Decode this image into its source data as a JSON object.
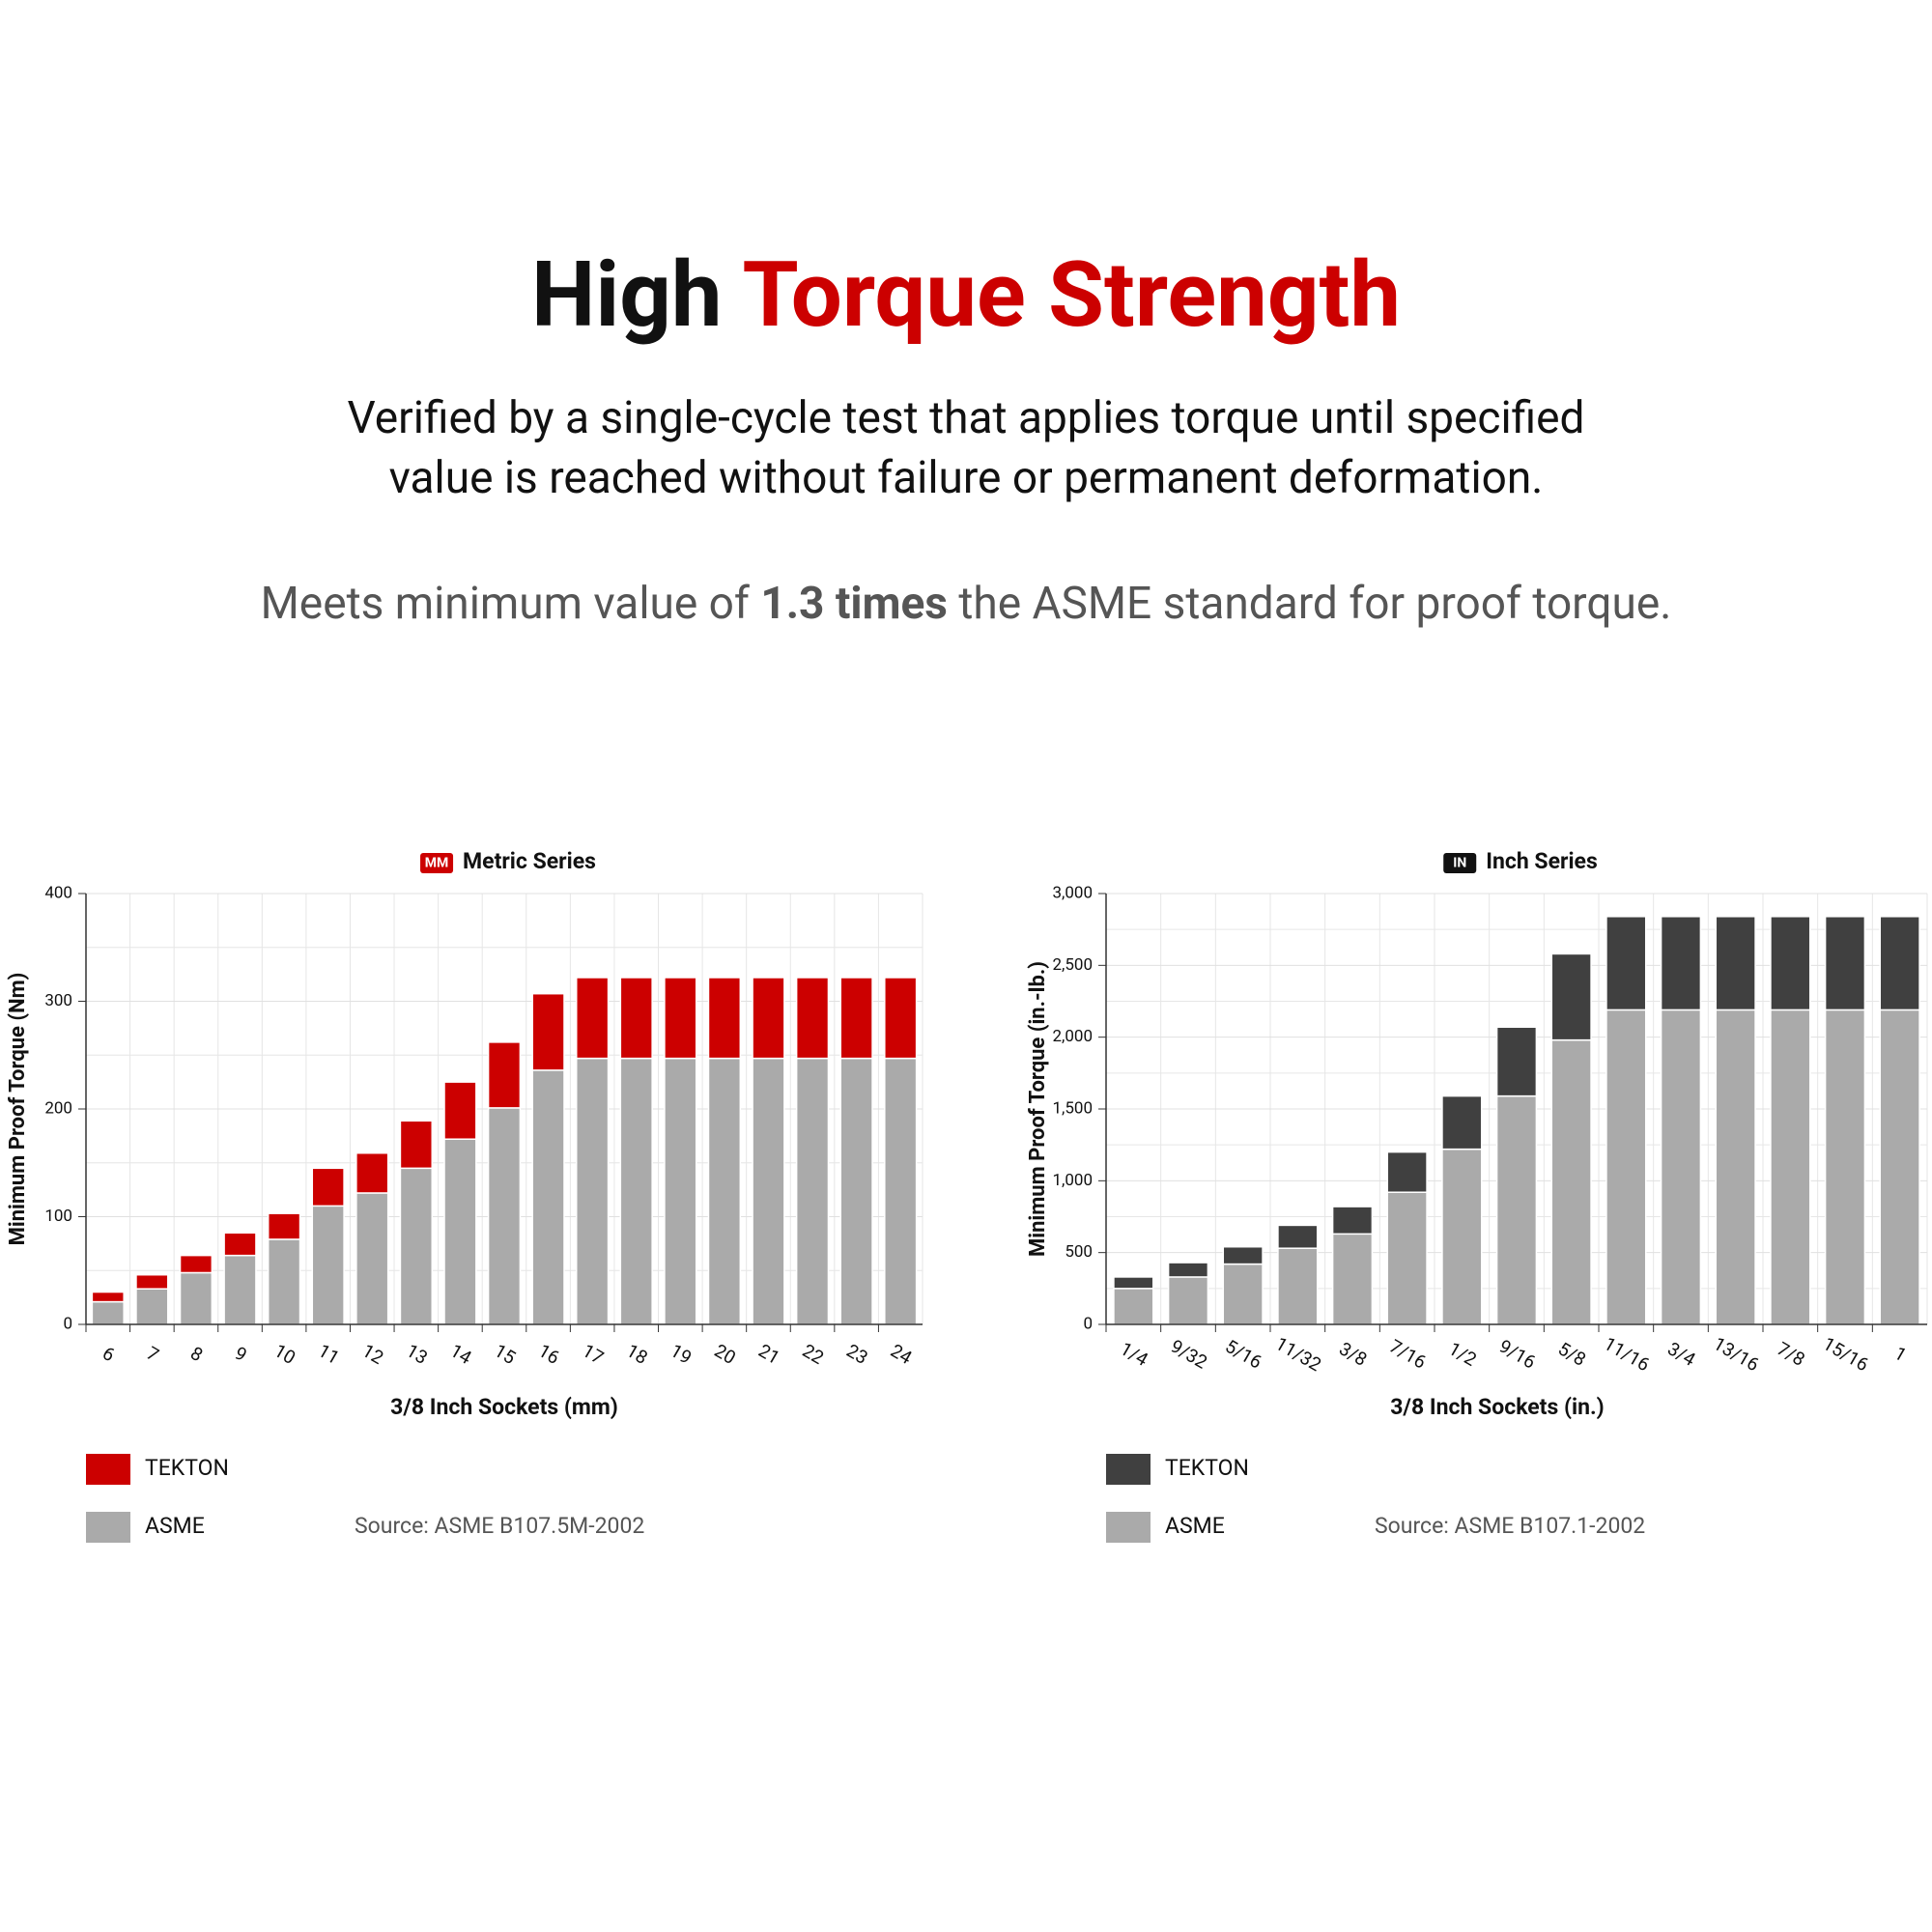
{
  "header": {
    "title": [
      "High",
      "Torque Strength"
    ],
    "subtitle": [
      "Verified by a single-cycle test that applies torque until specified",
      "value is reached without failure or permanent deformation."
    ],
    "note": [
      "Meets minimum value of",
      "1.3 times",
      "the ASME standard for proof torque."
    ]
  },
  "chart_data": [
    {
      "type": "bar",
      "stacked": true,
      "badge": "MM",
      "title": "Metric Series",
      "x_label": "3/8 Inch Sockets (mm)",
      "y_label": "Minimum Proof Torque (Nm)",
      "source": "Source: ASME B107.5M-2002",
      "badge_color": "#cc0000",
      "categories": [
        "6",
        "7",
        "8",
        "9",
        "10",
        "11",
        "12",
        "13",
        "14",
        "15",
        "16",
        "17",
        "18",
        "19",
        "20",
        "21",
        "22",
        "23",
        "24"
      ],
      "series": [
        {
          "name": "ASME",
          "color": "#aaaaaa",
          "values": [
            21,
            33,
            48,
            64,
            79,
            110,
            122,
            145,
            172,
            201,
            236,
            247,
            247,
            247,
            247,
            247,
            247,
            247,
            247
          ]
        },
        {
          "name": "TEKTON",
          "color": "#cc0000",
          "values": [
            9,
            13,
            16,
            21,
            24,
            35,
            37,
            44,
            53,
            61,
            71,
            75,
            75,
            75,
            75,
            75,
            75,
            75,
            75
          ]
        }
      ],
      "ylim": [
        0,
        400
      ],
      "yticks": [
        0,
        100,
        200,
        300,
        400
      ],
      "grid": true
    },
    {
      "type": "bar",
      "stacked": true,
      "badge": "IN",
      "title": "Inch Series",
      "x_label": "3/8 Inch Sockets (in.)",
      "y_label": "Minimum Proof Torque (in.-lb.)",
      "source": "Source: ASME B107.1-2002",
      "badge_color": "#111111",
      "categories": [
        "1/4",
        "9/32",
        "5/16",
        "11/32",
        "3/8",
        "7/16",
        "1/2",
        "9/16",
        "5/8",
        "11/16",
        "3/4",
        "13/16",
        "7/8",
        "15/16",
        "1"
      ],
      "series": [
        {
          "name": "ASME",
          "color": "#aaaaaa",
          "values": [
            250,
            330,
            420,
            530,
            630,
            920,
            1220,
            1590,
            1980,
            2190,
            2190,
            2190,
            2190,
            2190,
            2190
          ]
        },
        {
          "name": "TEKTON",
          "color": "#404040",
          "values": [
            80,
            100,
            120,
            160,
            190,
            280,
            370,
            480,
            600,
            650,
            650,
            650,
            650,
            650,
            650
          ]
        }
      ],
      "ylim": [
        0,
        3000
      ],
      "yticks": [
        0,
        500,
        {
          "value": 1000,
          "label": "1,000"
        },
        {
          "value": 1500,
          "label": "1,500"
        },
        {
          "value": 2000,
          "label": "2,000"
        },
        {
          "value": 2500,
          "label": "2,500"
        },
        {
          "value": 3000,
          "label": "3,000"
        }
      ],
      "grid": true
    }
  ]
}
